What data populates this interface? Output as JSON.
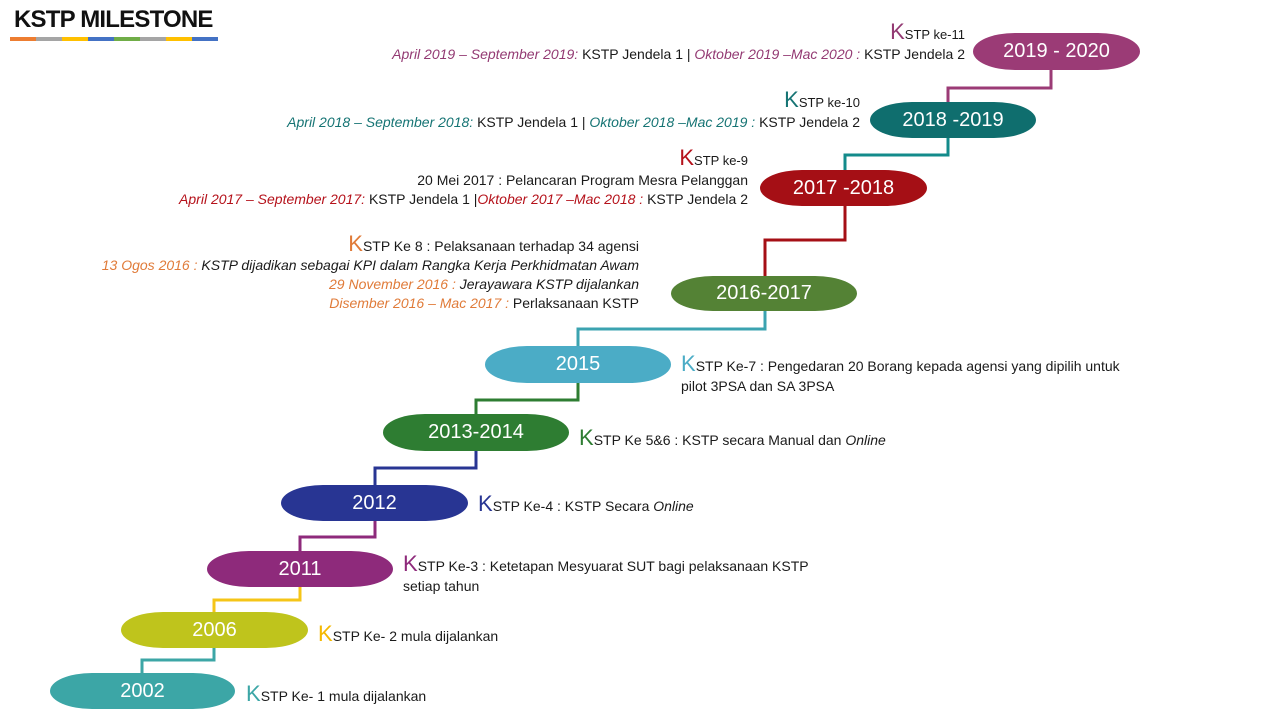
{
  "title": "KSTP MILESTONE",
  "title_bar": [
    "#ed7d31",
    "#a5a5a5",
    "#ffc000",
    "#4472c4",
    "#70ad47",
    "#a5a5a5",
    "#ffc000",
    "#4472c4"
  ],
  "connector_colors": [
    "#3ca6a6",
    "#f5c518",
    "#8e2a7b",
    "#283593",
    "#2e7d32",
    "#3ba3b0",
    "#a50f15",
    "#138b8b",
    "#9b3b76"
  ],
  "milestones": [
    {
      "year": "2002",
      "pill_color": "#3ca6a6",
      "accent_color": "#3ca6a6",
      "note": {
        "k": "K",
        "heading": "STP Ke- 1 mula dijalankan"
      }
    },
    {
      "year": "2006",
      "pill_color": "#bfc41c",
      "accent_color": "#f5b800",
      "note": {
        "k": "K",
        "heading": "STP Ke- 2 mula dijalankan"
      }
    },
    {
      "year": "2011",
      "pill_color": "#8e2a7b",
      "accent_color": "#8e2a7b",
      "note": {
        "k": "K",
        "heading": "STP Ke-3",
        "text": ": Ketetapan Mesyuarat SUT bagi pelaksanaan KSTP",
        "text_line2": "setiap tahun"
      }
    },
    {
      "year": "2012",
      "pill_color": "#283593",
      "accent_color": "#283593",
      "note": {
        "k": "K",
        "heading": "STP Ke-4",
        "text": ": KSTP Secara",
        "emphasis": "Online"
      }
    },
    {
      "year": "2013-2014",
      "pill_color": "#2e7d32",
      "accent_color": "#2e7d32",
      "note": {
        "k": "K",
        "heading": "STP Ke 5&6",
        "text": ": KSTP secara Manual dan",
        "emphasis": "Online"
      }
    },
    {
      "year": "2015",
      "pill_color": "#4bacc6",
      "accent_color": "#4bacc6",
      "note": {
        "k": "K",
        "heading": "STP Ke-7",
        "text": ": Pengedaran 20 Borang kepada agensi yang dipilih untuk",
        "text_line2": "pilot 3PSA dan SA 3PSA"
      }
    },
    {
      "year": "2016-2017",
      "pill_color": "#548235",
      "accent_color": "#e07b39",
      "note": {
        "k": "K",
        "heading": "STP Ke 8",
        "text": ": Pelaksanaan terhadap 34 agensi",
        "events": [
          {
            "date": "13 Ogos 2016 :",
            "text": "KSTP dijadikan sebagai KPI dalam Rangka Kerja Perkhidmatan Awam"
          },
          {
            "date": "29 November 2016 :",
            "text": "Jerayawara KSTP dijalankan"
          },
          {
            "date": "Disember 2016 – Mac 2017 :",
            "text": "Perlaksanaan KSTP"
          }
        ]
      }
    },
    {
      "year": "2017 -2018",
      "pill_color": "#a50f15",
      "accent_color": "#b5121b",
      "note": {
        "k": "K",
        "heading": "STP ke-9",
        "event": "20 Mei 2017 : Pelancaran Program Mesra Pelanggan",
        "period1": "April 2017 – September 2017:",
        "window1": "KSTP Jendela 1",
        "separator": "|",
        "period2": "Oktober 2017 –Mac 2018 :",
        "window2": "KSTP Jendela 2"
      }
    },
    {
      "year": "2018 -2019",
      "pill_color": "#0f6e6e",
      "accent_color": "#167474",
      "note": {
        "k": "K",
        "heading": "STP ke-10",
        "period1": "April 2018 – September 2018:",
        "window1": "KSTP Jendela 1",
        "separator": "|",
        "period2": "Oktober 2018 –Mac 2019 :",
        "window2": "KSTP Jendela 2"
      }
    },
    {
      "year": "2019 - 2020",
      "pill_color": "#9b3b76",
      "accent_color": "#933a73",
      "note": {
        "k": "K",
        "heading": "STP ke-11",
        "period1": "April 2019 – September 2019:",
        "window1": "KSTP Jendela 1",
        "separator": "|",
        "period2": "Oktober 2019 –Mac 2020 :",
        "window2": "KSTP Jendela 2"
      }
    }
  ]
}
